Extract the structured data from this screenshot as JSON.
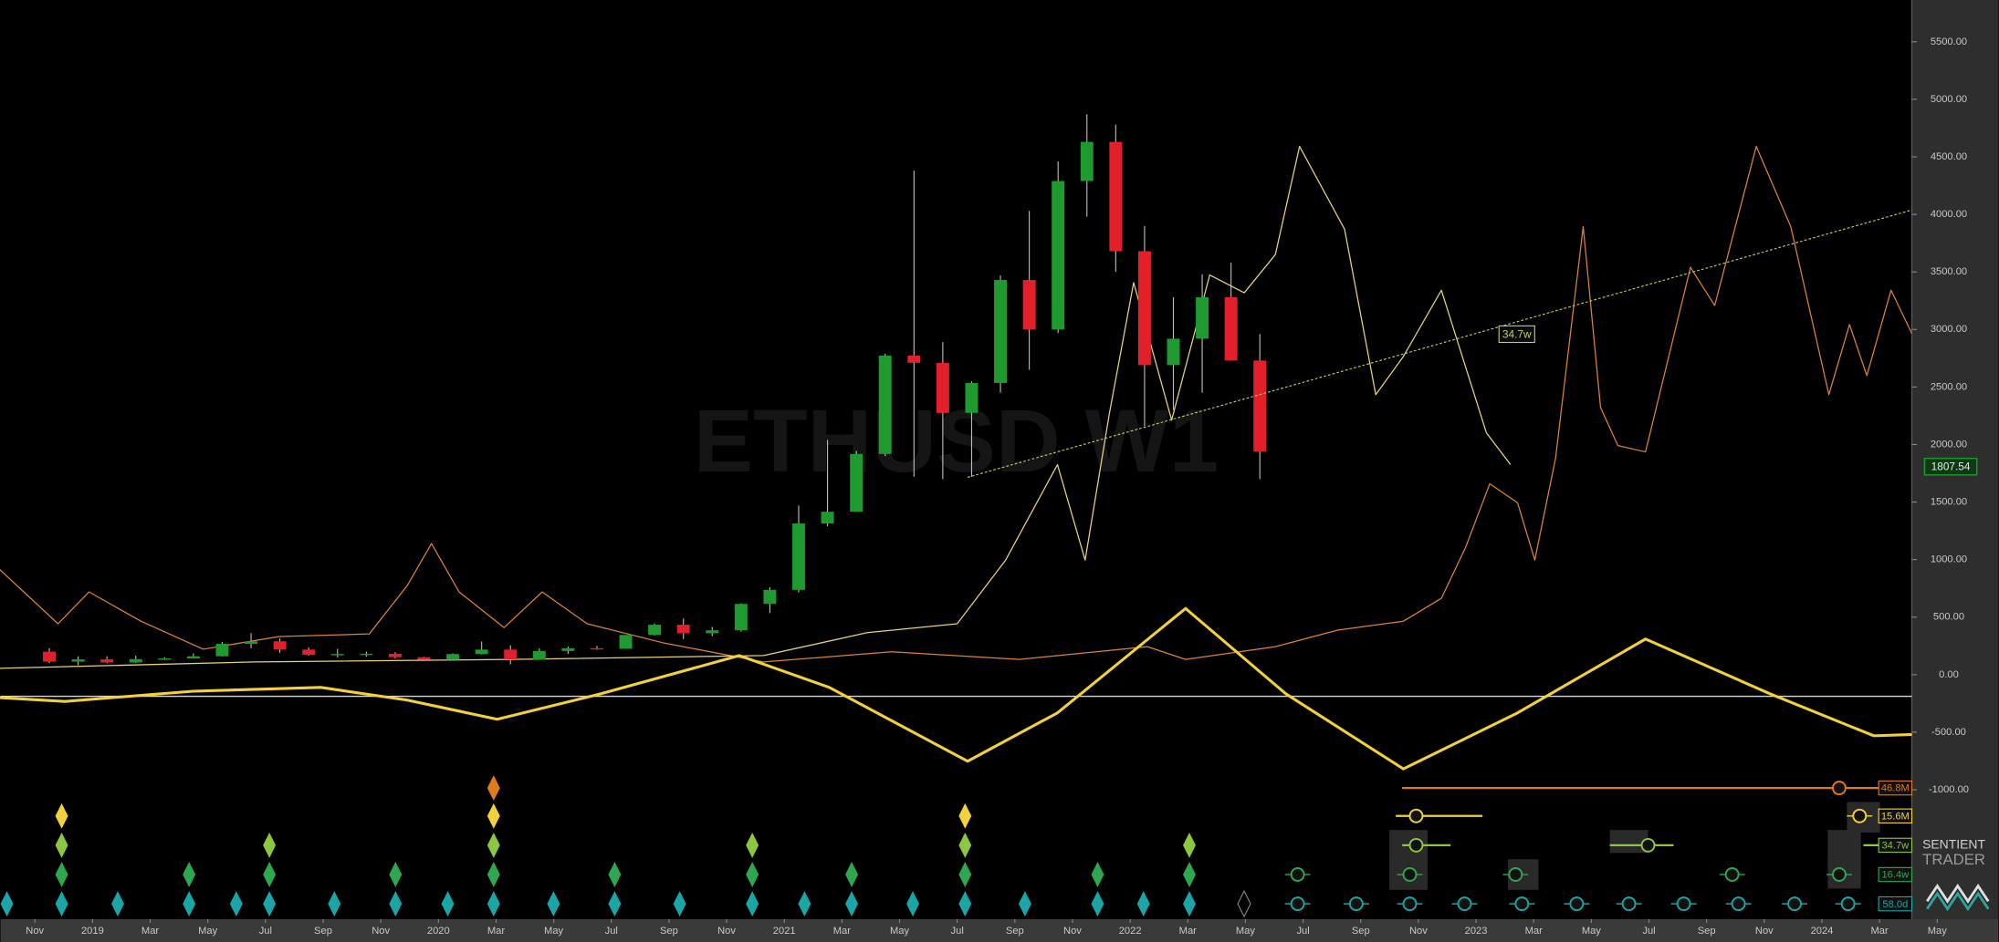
{
  "chart_data": {
    "type": "candlestick",
    "watermark": "ETHUSD W1",
    "xlim": [
      2018.734,
      2024.26
    ],
    "ylim": [
      -2124,
      5863
    ],
    "yticks": [
      {
        "value": 5500,
        "label": "5500.00"
      },
      {
        "value": 5000,
        "label": "5000.00"
      },
      {
        "value": 4500,
        "label": "4500.00"
      },
      {
        "value": 4000,
        "label": "4000.00"
      },
      {
        "value": 3500,
        "label": "3500.00"
      },
      {
        "value": 3000,
        "label": "3000.00"
      },
      {
        "value": 2500,
        "label": "2500.00"
      },
      {
        "value": 2000,
        "label": "2000.00"
      },
      {
        "value": 1500,
        "label": "1500.00"
      },
      {
        "value": 1000,
        "label": "1000.00"
      },
      {
        "value": 500,
        "label": "500.00"
      },
      {
        "value": 0,
        "label": "0.00"
      },
      {
        "value": -500,
        "label": "-500.00"
      },
      {
        "value": -1000,
        "label": "-1000.00"
      }
    ],
    "xticks": [
      {
        "value": "2018-11",
        "label": "Nov"
      },
      {
        "value": "2019-01",
        "label": "2019"
      },
      {
        "value": "2019-03",
        "label": "Mar"
      },
      {
        "value": "2019-05",
        "label": "May"
      },
      {
        "value": "2019-07",
        "label": "Jul"
      },
      {
        "value": "2019-09",
        "label": "Sep"
      },
      {
        "value": "2019-11",
        "label": "Nov"
      },
      {
        "value": "2020-01",
        "label": "2020"
      },
      {
        "value": "2020-03",
        "label": "Mar"
      },
      {
        "value": "2020-05",
        "label": "May"
      },
      {
        "value": "2020-07",
        "label": "Jul"
      },
      {
        "value": "2020-09",
        "label": "Sep"
      },
      {
        "value": "2020-11",
        "label": "Nov"
      },
      {
        "value": "2021-01",
        "label": "2021"
      },
      {
        "value": "2021-03",
        "label": "Mar"
      },
      {
        "value": "2021-05",
        "label": "May"
      },
      {
        "value": "2021-07",
        "label": "Jul"
      },
      {
        "value": "2021-09",
        "label": "Sep"
      },
      {
        "value": "2021-11",
        "label": "Nov"
      },
      {
        "value": "2022-01",
        "label": "2022"
      },
      {
        "value": "2022-03",
        "label": "Mar"
      },
      {
        "value": "2022-05",
        "label": "May"
      },
      {
        "value": "2022-07",
        "label": "Jul"
      },
      {
        "value": "2022-09",
        "label": "Sep"
      },
      {
        "value": "2022-11",
        "label": "Nov"
      },
      {
        "value": "2023-01",
        "label": "2023"
      },
      {
        "value": "2023-03",
        "label": "Mar"
      },
      {
        "value": "2023-05",
        "label": "May"
      },
      {
        "value": "2023-07",
        "label": "Jul"
      },
      {
        "value": "2023-09",
        "label": "Sep"
      },
      {
        "value": "2023-11",
        "label": "Nov"
      },
      {
        "value": "2024-01",
        "label": "2024"
      },
      {
        "value": "2024-03",
        "label": "Mar"
      },
      {
        "value": "2024-05",
        "label": "May"
      }
    ],
    "up_color": "#1e9a2e",
    "down_color": "#e3202a",
    "x": [
      "2018-11",
      "2018-12",
      "2019-01",
      "2019-02",
      "2019-03",
      "2019-04",
      "2019-05",
      "2019-06",
      "2019-07",
      "2019-08",
      "2019-09",
      "2019-10",
      "2019-11",
      "2019-12",
      "2020-01",
      "2020-02",
      "2020-03",
      "2020-04",
      "2020-05",
      "2020-06",
      "2020-07",
      "2020-08",
      "2020-09",
      "2020-10",
      "2020-11",
      "2020-12",
      "2021-01",
      "2021-02",
      "2021-03",
      "2021-04",
      "2021-05",
      "2021-06",
      "2021-07",
      "2021-08",
      "2021-09",
      "2021-10",
      "2021-11",
      "2021-12",
      "2022-01",
      "2022-02",
      "2022-03",
      "2022-04",
      "2022-05"
    ],
    "open": [
      200,
      113,
      133,
      106,
      135,
      141,
      160,
      268,
      290,
      218,
      172,
      180,
      182,
      152,
      129,
      179,
      218,
      133,
      206,
      230,
      225,
      345,
      434,
      360,
      386,
      615,
      737,
      1314,
      1416,
      1918,
      2773,
      2710,
      2275,
      2535,
      3430,
      3000,
      4290,
      4630,
      3680,
      2690,
      2920,
      3280,
      2730
    ],
    "high": [
      230,
      160,
      160,
      165,
      150,
      185,
      285,
      362,
      315,
      238,
      225,
      200,
      195,
      155,
      185,
      288,
      255,
      228,
      245,
      250,
      345,
      445,
      488,
      415,
      620,
      760,
      1470,
      2040,
      1945,
      2790,
      4380,
      2890,
      2550,
      3470,
      4030,
      4460,
      4870,
      4780,
      3900,
      3280,
      3480,
      3580,
      2960
    ],
    "low": [
      100,
      82,
      100,
      102,
      128,
      140,
      158,
      230,
      190,
      165,
      150,
      155,
      140,
      120,
      126,
      175,
      90,
      130,
      180,
      216,
      225,
      340,
      310,
      335,
      375,
      535,
      715,
      1290,
      1435,
      1900,
      1720,
      1700,
      1720,
      2450,
      2650,
      2970,
      3980,
      3500,
      2160,
      2300,
      2450,
      2780,
      1700
    ],
    "close": [
      113,
      133,
      106,
      135,
      141,
      160,
      268,
      290,
      218,
      172,
      180,
      182,
      152,
      129,
      179,
      218,
      133,
      206,
      230,
      225,
      345,
      434,
      360,
      386,
      615,
      737,
      1314,
      1416,
      1918,
      2773,
      2710,
      2275,
      2535,
      3430,
      3000,
      4290,
      4630,
      3680,
      2690,
      2920,
      3280,
      2730,
      1940
    ],
    "last_price": 1807.54,
    "last_price_color": "#1e9a2e",
    "hline": -188,
    "hline_color": "#d8d8d8",
    "lines": [
      {
        "color": "#d9843a",
        "width": 0.9,
        "x": [
          2018.73,
          2018.9,
          2018.99,
          2019.14,
          2019.32,
          2019.54,
          2019.8,
          2019.91,
          2019.98,
          2020.06,
          2020.19,
          2020.3,
          2020.43,
          2020.65,
          2020.94,
          2021.31,
          2021.68,
          2022.05,
          2022.16,
          2022.42,
          2022.6,
          2022.79,
          2022.9,
          2022.97,
          2023.04,
          2023.12,
          2023.17,
          2023.23,
          2023.31,
          2023.36,
          2023.41,
          2023.49,
          2023.62,
          2023.69,
          2023.81,
          2023.91,
          2024.02,
          2024.08,
          2024.13,
          2024.2,
          2024.26
        ],
        "values": [
          918,
          442,
          719,
          465,
          221,
          332,
          354,
          774,
          1139,
          719,
          409,
          719,
          442,
          277,
          111,
          199,
          133,
          243,
          133,
          243,
          387,
          465,
          664,
          1106,
          1659,
          1493,
          996,
          1881,
          3894,
          2323,
          1991,
          1936,
          3540,
          3208,
          4591,
          3894,
          2434,
          3042,
          2600,
          3341,
          2965
        ]
      },
      {
        "color": "#e8d27a",
        "width": 0.9,
        "x": [
          2018.73,
          2019.47,
          2020.21,
          2020.94,
          2021.24,
          2021.5,
          2021.64,
          2021.79,
          2021.87,
          2021.94,
          2022.01,
          2022.12,
          2022.23,
          2022.33,
          2022.42,
          2022.49,
          2022.62,
          2022.71,
          2022.79,
          2022.9,
          2023.03,
          2023.1
        ],
        "values": [
          55,
          111,
          133,
          166,
          365,
          442,
          996,
          1825,
          996,
          2268,
          3407,
          2212,
          3473,
          3319,
          3650,
          4591,
          3872,
          2434,
          2765,
          3341,
          2102,
          1825
        ]
      },
      {
        "color": "#f2d13a",
        "width": 2.2,
        "x": [
          2018.73,
          2018.92,
          2019.29,
          2019.66,
          2019.91,
          2020.17,
          2020.47,
          2020.87,
          2021.13,
          2021.53,
          2021.79,
          2022.16,
          2022.45,
          2022.79,
          2023.12,
          2023.49,
          2023.85,
          2024.15,
          2024.26
        ],
        "values": [
          -199,
          -232,
          -144,
          -111,
          -221,
          -387,
          -166,
          166,
          -111,
          -752,
          -332,
          575,
          -166,
          -819,
          -332,
          310,
          -166,
          -531,
          -520
        ]
      }
    ],
    "trendline": {
      "x": [
        2021.53,
        2024.26
      ],
      "values": [
        1715,
        4038
      ],
      "color": "#b8d36a",
      "label": "34.7w"
    },
    "cycles": [
      {
        "label": "46.8M",
        "color": "#e07b1a"
      },
      {
        "label": "15.6M",
        "color": "#f2d13a"
      },
      {
        "label": "34.7w",
        "color": "#8dc63f"
      },
      {
        "label": "16.4w",
        "color": "#2ea84f"
      },
      {
        "label": "58.0d",
        "color": "#1aa6a6"
      }
    ]
  },
  "logo": [
    "SENTIENT",
    "TRADER"
  ]
}
